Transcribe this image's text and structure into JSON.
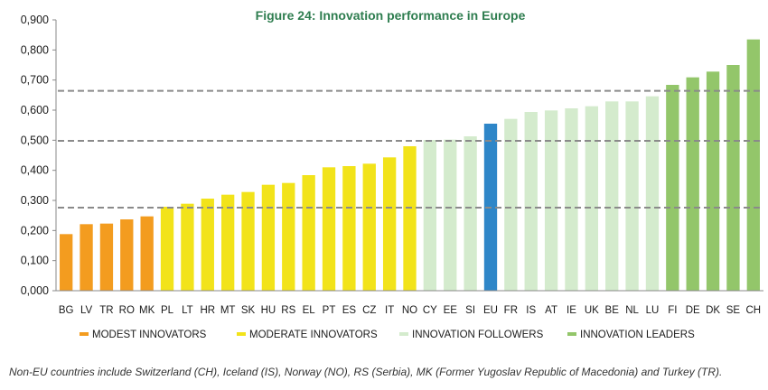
{
  "chart_data": {
    "type": "bar",
    "title": "Figure 24: Innovation performance in Europe",
    "xlabel": "",
    "ylabel": "",
    "ylim": [
      0,
      0.9
    ],
    "yticks": [
      "0,000",
      "0,100",
      "0,200",
      "0,300",
      "0,400",
      "0,500",
      "0,600",
      "0,700",
      "0,800",
      "0,900"
    ],
    "grid": false,
    "thresholds": [
      0.276,
      0.498,
      0.664
    ],
    "categories": [
      "BG",
      "LV",
      "TR",
      "RO",
      "MK",
      "PL",
      "LT",
      "HR",
      "MT",
      "SK",
      "HU",
      "RS",
      "EL",
      "PT",
      "ES",
      "CZ",
      "IT",
      "NO",
      "CY",
      "EE",
      "SI",
      "EU",
      "FR",
      "IS",
      "AT",
      "IE",
      "UK",
      "BE",
      "NL",
      "LU",
      "FI",
      "DE",
      "DK",
      "SE",
      "CH"
    ],
    "values": [
      0.188,
      0.221,
      0.223,
      0.237,
      0.247,
      0.279,
      0.289,
      0.306,
      0.319,
      0.328,
      0.352,
      0.358,
      0.384,
      0.41,
      0.414,
      0.422,
      0.443,
      0.48,
      0.501,
      0.502,
      0.513,
      0.555,
      0.571,
      0.594,
      0.599,
      0.606,
      0.613,
      0.629,
      0.629,
      0.646,
      0.684,
      0.709,
      0.728,
      0.75,
      0.835
    ],
    "groups": [
      "modest",
      "modest",
      "modest",
      "modest",
      "modest",
      "moderate",
      "moderate",
      "moderate",
      "moderate",
      "moderate",
      "moderate",
      "moderate",
      "moderate",
      "moderate",
      "moderate",
      "moderate",
      "moderate",
      "moderate",
      "follower",
      "follower",
      "follower",
      "eu",
      "follower",
      "follower",
      "follower",
      "follower",
      "follower",
      "follower",
      "follower",
      "follower",
      "leader",
      "leader",
      "leader",
      "leader",
      "leader"
    ],
    "colors": {
      "modest": "#f39c1f",
      "moderate": "#f2e31a",
      "follower": "#d4ebcd",
      "leader": "#93c66a",
      "eu": "#2e86c8",
      "threshold": "#8a8a8a"
    },
    "legend": [
      {
        "key": "modest",
        "label": "MODEST INNOVATORS"
      },
      {
        "key": "moderate",
        "label": "MODERATE INNOVATORS"
      },
      {
        "key": "follower",
        "label": "INNOVATION FOLLOWERS"
      },
      {
        "key": "leader",
        "label": "INNOVATION LEADERS"
      }
    ],
    "legend_position": "bottom"
  },
  "footnote": "Non-EU countries include Switzerland (CH), Iceland (IS), Norway (NO), RS (Serbia), MK (Former Yugoslav Republic of Macedonia) and Turkey (TR)."
}
